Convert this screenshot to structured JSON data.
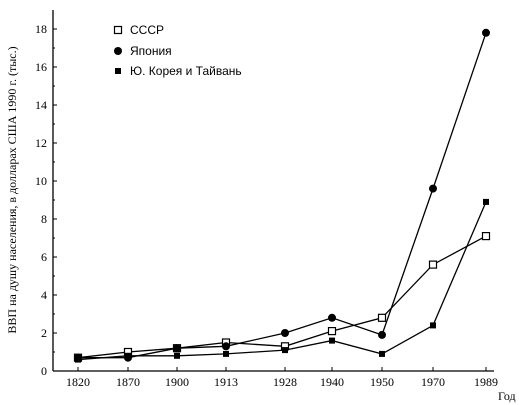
{
  "chart_data": {
    "type": "line",
    "title": "",
    "xlabel": "Год",
    "ylabel": "ВВП на душу населения, в долларах США 1990 г. (тыс.)",
    "categories": [
      "1820",
      "1870",
      "1900",
      "1913",
      "1928",
      "1940",
      "1950",
      "1970",
      "1989"
    ],
    "ylim": [
      0,
      19
    ],
    "yticks": [
      0,
      2,
      4,
      6,
      8,
      10,
      12,
      14,
      16,
      18
    ],
    "grid": false,
    "legend_position": "top-left",
    "series": [
      {
        "name": "СССР",
        "marker": "open-square",
        "values": [
          0.7,
          1.0,
          1.2,
          1.5,
          1.3,
          2.1,
          2.8,
          5.6,
          7.1
        ]
      },
      {
        "name": "Япония",
        "marker": "filled-circle",
        "values": [
          0.7,
          0.7,
          1.2,
          1.3,
          2.0,
          2.8,
          1.9,
          9.6,
          17.8
        ]
      },
      {
        "name": "Ю. Корея и Тайвань",
        "marker": "filled-square",
        "values": [
          0.6,
          0.8,
          0.8,
          0.9,
          1.1,
          1.6,
          0.9,
          2.4,
          8.9
        ]
      }
    ],
    "colors": {
      "line": "#000000",
      "marker_fill": "#000000",
      "open_marker_fill": "#ffffff"
    }
  }
}
